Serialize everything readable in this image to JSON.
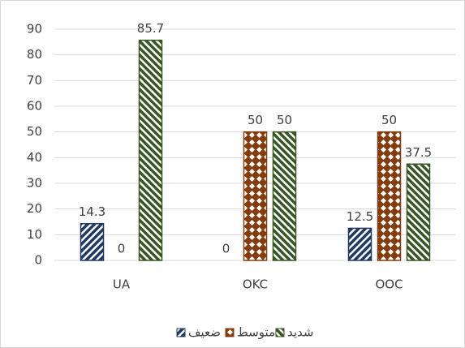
{
  "chart_data": {
    "type": "bar",
    "categories": [
      "UA",
      "OKC",
      "OOC"
    ],
    "series": [
      {
        "name": "ضعيف",
        "color": "#203864",
        "values": [
          14.3,
          0,
          12.5
        ]
      },
      {
        "name": "متوسط",
        "color": "#843c0c",
        "values": [
          0,
          50,
          50
        ]
      },
      {
        "name": "شديد",
        "color": "#375623",
        "values": [
          85.7,
          50,
          37.5
        ]
      }
    ],
    "ylim": [
      0,
      90
    ],
    "yticks": [
      0,
      10,
      20,
      30,
      40,
      50,
      60,
      70,
      80,
      90
    ],
    "grid": true,
    "legend": "bottom"
  }
}
